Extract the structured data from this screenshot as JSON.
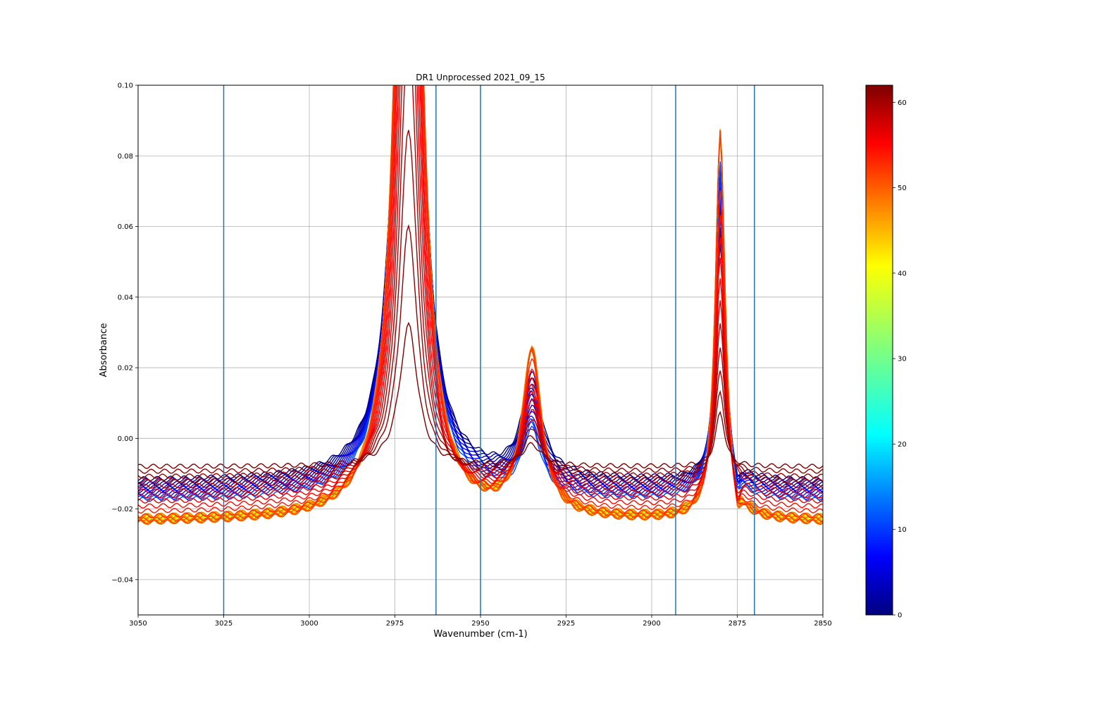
{
  "chart_data": {
    "type": "line",
    "title": "DR1 Unprocessed 2021_09_15",
    "xlabel": "Wavenumber (cm-1)",
    "ylabel": "Absorbance",
    "x_reversed": true,
    "xlim": [
      3050,
      2850
    ],
    "ylim": [
      -0.05,
      0.1
    ],
    "grid": true,
    "xticks": [
      3050,
      3025,
      3000,
      2975,
      2950,
      2925,
      2900,
      2875,
      2850
    ],
    "xtick_labels": [
      "3050",
      "3025",
      "3000",
      "2975",
      "2950",
      "2925",
      "2900",
      "2875",
      "2850"
    ],
    "yticks": [
      -0.04,
      -0.02,
      0.0,
      0.02,
      0.04,
      0.06,
      0.08,
      0.1
    ],
    "ytick_labels": [
      "−0.04",
      "−0.02",
      "0.00",
      "0.02",
      "0.04",
      "0.06",
      "0.08",
      "0.10"
    ],
    "vertical_lines": [
      3025,
      2963,
      2950,
      2893,
      2870
    ],
    "vertical_line_color": "#1f77b4",
    "colorbar": {
      "colormap": "jet",
      "min": 0,
      "max": 62,
      "ticks": [
        0,
        10,
        20,
        30,
        40,
        50,
        60
      ],
      "tick_labels": [
        "0",
        "10",
        "20",
        "30",
        "40",
        "50",
        "60"
      ]
    },
    "series_colors_sample": [
      "#00008b",
      "#0000ff",
      "#00bfff",
      "#7fff7f",
      "#ffd700",
      "#ffa500",
      "#ff4500",
      "#ff0000",
      "#b22222",
      "#8b0000"
    ],
    "peaks": [
      {
        "x": 2971,
        "approx_max": ">0.10"
      },
      {
        "x": 2935,
        "approx_max": 0.035
      },
      {
        "x": 2880,
        "approx_max": 0.099
      }
    ],
    "series": [
      {
        "values_desc": "representative spectra"
      }
    ]
  }
}
